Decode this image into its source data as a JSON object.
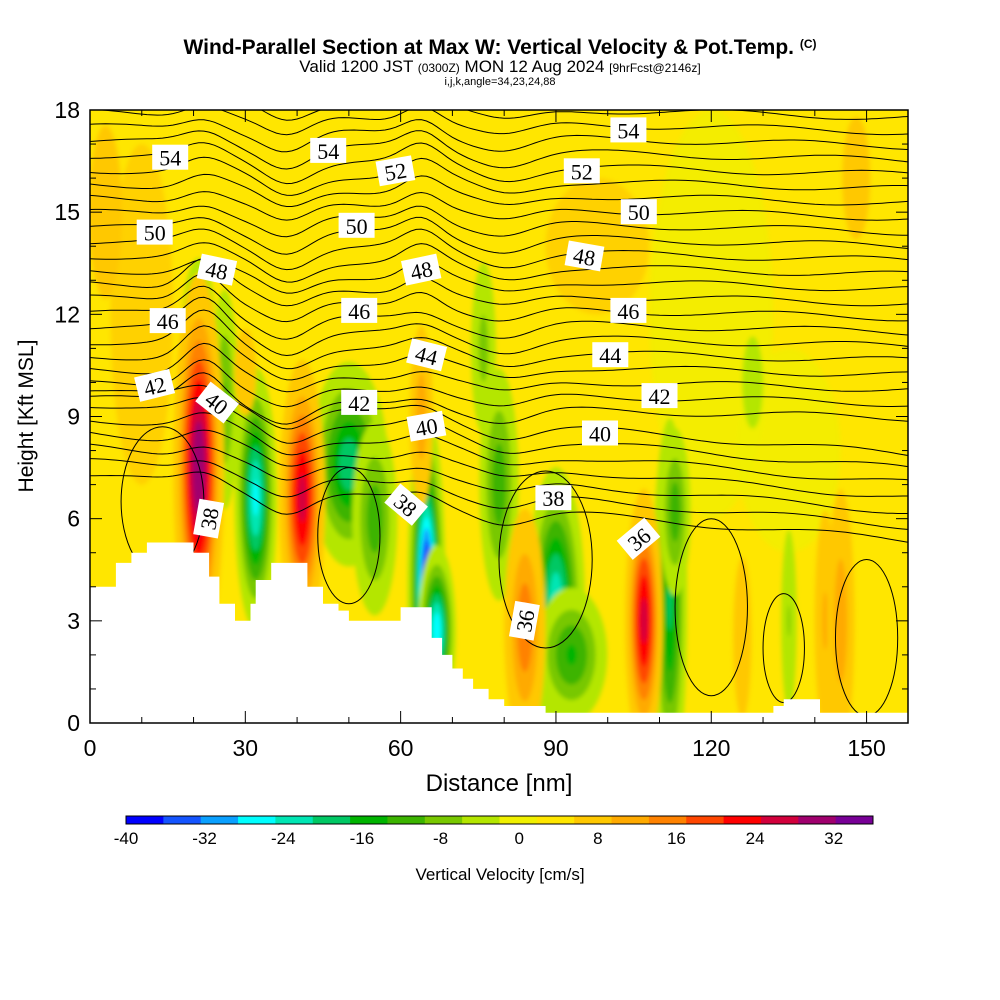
{
  "header": {
    "title": "Wind-Parallel Section at Max W: Vertical Velocity & Pot.Temp.",
    "title_tag": "(C)",
    "valid_prefix": "Valid 1200 JST",
    "valid_zulu": "(0300Z)",
    "valid_date": "MON 12 Aug 2024",
    "forecast_tag": "[9hrFcst@2146z]",
    "grid_note": "i,j,k,angle=34,23,24,88"
  },
  "chart_data": {
    "type": "heatmap",
    "xlabel": "Distance [nm]",
    "ylabel": "Height [Kft MSL]",
    "xlim": [
      0,
      158
    ],
    "ylim": [
      0,
      18
    ],
    "xticks": [
      0,
      30,
      60,
      90,
      120,
      150
    ],
    "yticks": [
      0,
      3,
      6,
      9,
      12,
      15,
      18
    ],
    "colorbar": {
      "label": "Vertical Velocity [cm/s]",
      "ticks": [
        -40,
        -32,
        -24,
        -16,
        -8,
        0,
        8,
        16,
        24,
        32
      ],
      "range": [
        -40,
        36
      ],
      "colors": [
        "#0000ff",
        "#1454ff",
        "#0aa0ff",
        "#00ffff",
        "#00e6b4",
        "#00c864",
        "#00b400",
        "#3cb400",
        "#78c800",
        "#b4e600",
        "#f0f000",
        "#ffe600",
        "#ffc800",
        "#ffaa00",
        "#ff8200",
        "#ff4600",
        "#ff0000",
        "#d2003c",
        "#a0006e",
        "#780096"
      ]
    },
    "terrain": [
      [
        0,
        4
      ],
      [
        5,
        4
      ],
      [
        5,
        4.7
      ],
      [
        8,
        4.7
      ],
      [
        8,
        5
      ],
      [
        11,
        5
      ],
      [
        11,
        5.3
      ],
      [
        20,
        5.3
      ],
      [
        20,
        5
      ],
      [
        23,
        5
      ],
      [
        23,
        4.3
      ],
      [
        25,
        4.3
      ],
      [
        25,
        3.5
      ],
      [
        28,
        3.5
      ],
      [
        28,
        3
      ],
      [
        31,
        3
      ],
      [
        31,
        3.5
      ],
      [
        32,
        3.5
      ],
      [
        32,
        4.2
      ],
      [
        35,
        4.2
      ],
      [
        35,
        4.7
      ],
      [
        42,
        4.7
      ],
      [
        42,
        4
      ],
      [
        45,
        4
      ],
      [
        45,
        3.5
      ],
      [
        48,
        3.5
      ],
      [
        48,
        3.3
      ],
      [
        50,
        3.3
      ],
      [
        50,
        3
      ],
      [
        60,
        3
      ],
      [
        60,
        3.4
      ],
      [
        66,
        3.4
      ],
      [
        66,
        2.5
      ],
      [
        68,
        2.5
      ],
      [
        68,
        2
      ],
      [
        70,
        2
      ],
      [
        70,
        1.6
      ],
      [
        72,
        1.6
      ],
      [
        72,
        1.3
      ],
      [
        74,
        1.3
      ],
      [
        74,
        1
      ],
      [
        77,
        1
      ],
      [
        77,
        0.7
      ],
      [
        80,
        0.7
      ],
      [
        80,
        0.5
      ],
      [
        88,
        0.5
      ],
      [
        88,
        0.3
      ],
      [
        132,
        0.3
      ],
      [
        132,
        0.5
      ],
      [
        134,
        0.5
      ],
      [
        134,
        0.7
      ],
      [
        141,
        0.7
      ],
      [
        141,
        0.3
      ],
      [
        158,
        0.3
      ]
    ],
    "updrafts": [
      {
        "x": 21,
        "y": 7.5,
        "w": 32,
        "sx": 2.4,
        "sy": 2.8
      },
      {
        "x": 41,
        "y": 6.6,
        "w": 26,
        "sx": 2.3,
        "sy": 2.1
      },
      {
        "x": 64,
        "y": 9,
        "w": 12,
        "sx": 1.5,
        "sy": 1.8
      },
      {
        "x": 84,
        "y": 2.8,
        "w": 16,
        "sx": 2.4,
        "sy": 2.1
      },
      {
        "x": 107,
        "y": 3,
        "w": 26,
        "sx": 1.9,
        "sy": 2
      },
      {
        "x": 142,
        "y": 3,
        "w": 10,
        "sx": 1.5,
        "sy": 2.4
      },
      {
        "x": 145,
        "y": 3,
        "w": 12,
        "sx": 1.8,
        "sy": 2.6
      },
      {
        "x": 126,
        "y": 2.5,
        "w": 8,
        "sx": 1.5,
        "sy": 2
      },
      {
        "x": 3,
        "y": 15,
        "w": 9,
        "sx": 2.5,
        "sy": 2
      },
      {
        "x": 148,
        "y": 16,
        "w": 6,
        "sx": 3,
        "sy": 2
      },
      {
        "x": 30,
        "y": 10.3,
        "w": 7,
        "sx": 2,
        "sy": 1.2
      }
    ],
    "downdrafts": [
      {
        "x": 32,
        "y": 6.6,
        "w": -26,
        "sx": 1.8,
        "sy": 1.7
      },
      {
        "x": 50,
        "y": 7.6,
        "w": -20,
        "sx": 3.5,
        "sy": 1.4
      },
      {
        "x": 55,
        "y": 6,
        "w": -12,
        "sx": 2.3,
        "sy": 1.5
      },
      {
        "x": 65,
        "y": 4,
        "w": -40,
        "sx": 1.5,
        "sy": 2.1
      },
      {
        "x": 67,
        "y": 2.7,
        "w": -28,
        "sx": 1.6,
        "sy": 1.1
      },
      {
        "x": 90,
        "y": 3.5,
        "w": -24,
        "sx": 2.5,
        "sy": 1.8
      },
      {
        "x": 93,
        "y": 2,
        "w": -14,
        "sx": 3.5,
        "sy": 1
      },
      {
        "x": 112,
        "y": 3.5,
        "w": -18,
        "sx": 1.6,
        "sy": 2.6
      },
      {
        "x": 113,
        "y": 6.2,
        "w": -12,
        "sx": 1.6,
        "sy": 1.3
      },
      {
        "x": 26,
        "y": 9.5,
        "w": -10,
        "sx": 1.5,
        "sy": 1.8
      },
      {
        "x": 21,
        "y": 11.5,
        "w": -10,
        "sx": 1.8,
        "sy": 1.2
      },
      {
        "x": 79,
        "y": 7,
        "w": -12,
        "sx": 2,
        "sy": 1.8
      },
      {
        "x": 76,
        "y": 11,
        "w": -7,
        "sx": 1.5,
        "sy": 1.6
      },
      {
        "x": 135,
        "y": 3,
        "w": -6,
        "sx": 1,
        "sy": 1.8
      },
      {
        "x": 128,
        "y": 10,
        "w": -5,
        "sx": 1.5,
        "sy": 1
      }
    ],
    "theta_labels": [
      {
        "text": "54",
        "x": 15.5,
        "y": 16.6,
        "angle": 0
      },
      {
        "text": "54",
        "x": 46,
        "y": 16.8,
        "angle": 0
      },
      {
        "text": "54",
        "x": 104,
        "y": 17.4,
        "angle": 0
      },
      {
        "text": "52",
        "x": 59,
        "y": 16.2,
        "angle": -10
      },
      {
        "text": "52",
        "x": 95,
        "y": 16.2,
        "angle": 0
      },
      {
        "text": "50",
        "x": 12.5,
        "y": 14.4,
        "angle": 0
      },
      {
        "text": "50",
        "x": 51.5,
        "y": 14.6,
        "angle": 0
      },
      {
        "text": "50",
        "x": 106,
        "y": 15,
        "angle": 0
      },
      {
        "text": "48",
        "x": 24.5,
        "y": 13.3,
        "angle": 12
      },
      {
        "text": "48",
        "x": 64,
        "y": 13.3,
        "angle": -12
      },
      {
        "text": "48",
        "x": 95.5,
        "y": 13.7,
        "angle": 10
      },
      {
        "text": "46",
        "x": 15,
        "y": 11.8,
        "angle": 0
      },
      {
        "text": "46",
        "x": 52,
        "y": 12.1,
        "angle": 0
      },
      {
        "text": "46",
        "x": 104,
        "y": 12.1,
        "angle": 0
      },
      {
        "text": "44",
        "x": 65,
        "y": 10.8,
        "angle": 14
      },
      {
        "text": "44",
        "x": 100.5,
        "y": 10.8,
        "angle": 0
      },
      {
        "text": "42",
        "x": 12.5,
        "y": 9.9,
        "angle": -14
      },
      {
        "text": "42",
        "x": 52,
        "y": 9.4,
        "angle": 0
      },
      {
        "text": "42",
        "x": 110,
        "y": 9.6,
        "angle": 0
      },
      {
        "text": "40",
        "x": 24.5,
        "y": 9.4,
        "angle": 38
      },
      {
        "text": "40",
        "x": 65,
        "y": 8.7,
        "angle": -10
      },
      {
        "text": "40",
        "x": 98.5,
        "y": 8.5,
        "angle": 0
      },
      {
        "text": "38",
        "x": 23,
        "y": 6,
        "angle": -80
      },
      {
        "text": "38",
        "x": 61,
        "y": 6.4,
        "angle": 40
      },
      {
        "text": "38",
        "x": 89.5,
        "y": 6.6,
        "angle": 0
      },
      {
        "text": "36",
        "x": 84,
        "y": 3,
        "angle": -80
      },
      {
        "text": "36",
        "x": 106,
        "y": 5.4,
        "angle": -40
      }
    ]
  }
}
